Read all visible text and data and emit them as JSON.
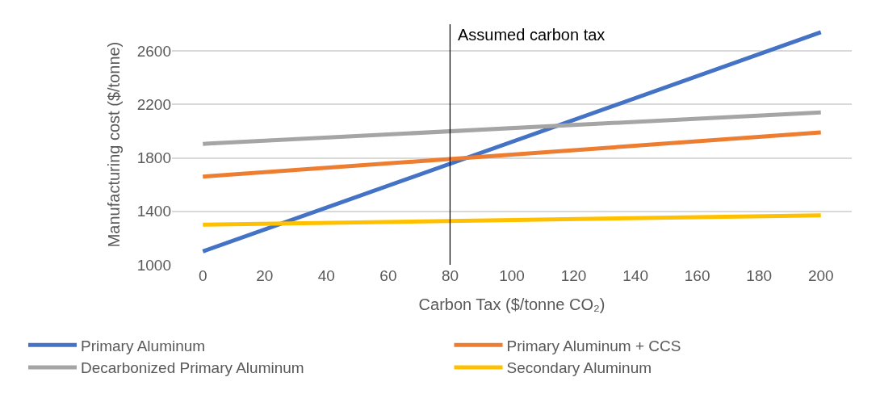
{
  "chart_data": {
    "type": "line",
    "xlabel": "Carbon Tax ($/tonne CO₂)",
    "ylabel": "Manufacturing cost ($/tonne)",
    "x": [
      0,
      200
    ],
    "series": [
      {
        "name": "Primary Aluminum",
        "color": "#4472c4",
        "values": [
          1100,
          2740
        ]
      },
      {
        "name": "Primary Aluminum + CCS",
        "color": "#ed7d31",
        "values": [
          1660,
          1990
        ]
      },
      {
        "name": "Decarbonized Primary Aluminum",
        "color": "#a5a5a5",
        "values": [
          1905,
          2140
        ]
      },
      {
        "name": "Secondary Aluminum",
        "color": "#ffc000",
        "values": [
          1300,
          1370
        ]
      }
    ],
    "xlim": [
      -10,
      210
    ],
    "xticks": [
      0,
      20,
      40,
      60,
      80,
      100,
      120,
      140,
      160,
      180,
      200
    ],
    "ylim": [
      1000,
      2800
    ],
    "yticks": [
      1000,
      1400,
      1800,
      2200,
      2600
    ],
    "ref_lines": [
      {
        "axis": "x",
        "value": 80,
        "label": "Assumed carbon tax",
        "color": "#000000"
      }
    ],
    "grid": "y",
    "legend": "bottom",
    "marker": "none",
    "line_style": "solid"
  }
}
